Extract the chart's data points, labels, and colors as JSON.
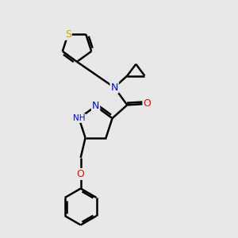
{
  "background_color": "#e8e8e8",
  "atom_colors": {
    "S": "#ccaa00",
    "N": "#0000ff",
    "O": "#ff0000",
    "H": "#4a9a8a",
    "C": "#000000"
  },
  "bond_color": "#000000",
  "bond_width": 1.8,
  "fig_width": 3.0,
  "fig_height": 3.0,
  "dpi": 100
}
